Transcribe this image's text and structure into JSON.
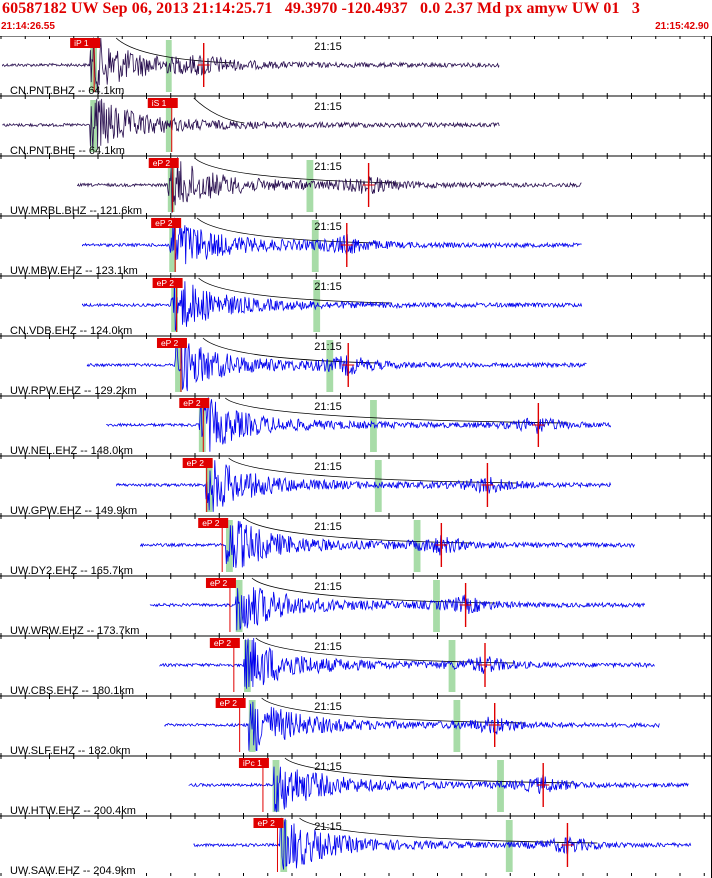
{
  "header": {
    "title": "60587182 UW Sep 06, 2013 21:14:25.71   49.3970 -120.4937   0.0 2.37 Md px amyw UW 01   3",
    "start_time": "21:14:26.55",
    "end_time": "21:15:42.90"
  },
  "colors": {
    "accent": "#e00000",
    "trace_dark": "#2a1050",
    "trace_blue": "#0000ee",
    "pick_band": "#a8dca8",
    "frame": "#000000"
  },
  "time_marker_label": "21:15",
  "traces": [
    {
      "label": "CN.PNT.BHZ -- 64.1km",
      "pick": "iP 1",
      "color": "dark",
      "pick_t": 19.0,
      "band_t": [
        18.6,
        20.0
      ],
      "band2_t": [
        34.2,
        35.4
      ],
      "start_t": 0.5,
      "end_t": 103,
      "s_t": 42.0,
      "s_amp": 0.5
    },
    {
      "label": "CN.PNT.BHE -- 64.1km",
      "pick": "iS 1",
      "color": "dark",
      "pick_t": 35.0,
      "band_t": [
        18.6,
        20.0
      ],
      "band2_t": [
        34.2,
        35.4
      ],
      "start_t": 0.5,
      "end_t": 103,
      "s_t": null,
      "s_amp": 0
    },
    {
      "label": "UW.MRBL.BHZ -- 121.6km",
      "pick": "eP 2",
      "color": "dark",
      "pick_t": 35.2,
      "band_t": [
        34.6,
        36.0
      ],
      "band2_t": [
        63.2,
        64.6
      ],
      "start_t": 16,
      "end_t": 120,
      "s_t": 76.0,
      "s_amp": 0.9
    },
    {
      "label": "UW.MBW.EHZ -- 123.1km",
      "pick": "eP 2",
      "color": "blue",
      "pick_t": 35.7,
      "band_t": [
        34.9,
        36.3
      ],
      "band2_t": [
        64.3,
        65.7
      ],
      "start_t": 17,
      "end_t": 120,
      "s_t": 71.5,
      "s_amp": 0.7
    },
    {
      "label": "CN.VDB.EHZ -- 124.0km",
      "pick": "eP 2",
      "color": "blue",
      "pick_t": 36.0,
      "band_t": [
        35.3,
        36.7
      ],
      "band2_t": [
        64.6,
        66.0
      ],
      "start_t": 17,
      "end_t": 120,
      "s_t": null,
      "s_amp": 0
    },
    {
      "label": "UW.RPW.EHZ -- 129.2km",
      "pick": "eP 2",
      "color": "blue",
      "pick_t": 36.9,
      "band_t": [
        36.1,
        37.5
      ],
      "band2_t": [
        67.3,
        68.7
      ],
      "start_t": 18,
      "end_t": 121,
      "s_t": 71.8,
      "s_amp": 0.8
    },
    {
      "label": "UW.NEL.EHZ -- 148.0km",
      "pick": "eP 2",
      "color": "blue",
      "pick_t": 41.5,
      "band_t": [
        41.0,
        42.4
      ],
      "band2_t": [
        76.3,
        77.7
      ],
      "start_t": 22,
      "end_t": 126,
      "s_t": 111.0,
      "s_amp": 0.7
    },
    {
      "label": "UW.GPW.EHZ -- 149.9km",
      "pick": "eP 2",
      "color": "blue",
      "pick_t": 42.2,
      "band_t": [
        42.4,
        43.8
      ],
      "band2_t": [
        77.3,
        78.7
      ],
      "start_t": 24,
      "end_t": 126,
      "s_t": 100.5,
      "s_amp": 0.6
    },
    {
      "label": "UW.DY2.EHZ -- 165.7km",
      "pick": "eP 2",
      "color": "blue",
      "pick_t": 45.4,
      "band_t": [
        46.6,
        48.0
      ],
      "band2_t": [
        85.3,
        86.7
      ],
      "start_t": 29,
      "end_t": 131,
      "s_t": 91.0,
      "s_amp": 0.7
    },
    {
      "label": "UW.WRW.EHZ -- 173.7km",
      "pick": "eP 2",
      "color": "blue",
      "pick_t": 47.0,
      "band_t": [
        48.6,
        50.0
      ],
      "band2_t": [
        89.3,
        90.7
      ],
      "start_t": 31,
      "end_t": 133,
      "s_t": 96.0,
      "s_amp": 0.7
    },
    {
      "label": "UW.CBS.EHZ -- 180.1km",
      "pick": "eP 2",
      "color": "blue",
      "pick_t": 47.8,
      "band_t": [
        50.3,
        51.7
      ],
      "band2_t": [
        92.5,
        93.9
      ],
      "start_t": 33,
      "end_t": 135,
      "s_t": 100.0,
      "s_amp": 0.8
    },
    {
      "label": "UW.SLF.EHZ -- 182.0km",
      "pick": "eP 2",
      "color": "blue",
      "pick_t": 49.0,
      "band_t": [
        51.3,
        52.7
      ],
      "band2_t": [
        93.5,
        94.9
      ],
      "start_t": 34,
      "end_t": 136,
      "s_t": 102.0,
      "s_amp": 0.8
    },
    {
      "label": "UW.HTW.EHZ -- 200.4km",
      "pick": "iPc 1",
      "color": "blue",
      "pick_t": 53.8,
      "band_t": [
        56.2,
        57.6
      ],
      "band2_t": [
        102.5,
        103.9
      ],
      "start_t": 39,
      "end_t": 142,
      "s_t": 112.0,
      "s_amp": 0.7
    },
    {
      "label": "UW.SAW.EHZ -- 204.9km",
      "pick": "eP 2",
      "color": "blue",
      "pick_t": 56.8,
      "band_t": [
        57.8,
        59.2
      ],
      "band2_t": [
        104.3,
        105.7
      ],
      "start_t": 40,
      "end_t": 142.5,
      "s_t": 117.0,
      "s_amp": 0.8
    }
  ]
}
